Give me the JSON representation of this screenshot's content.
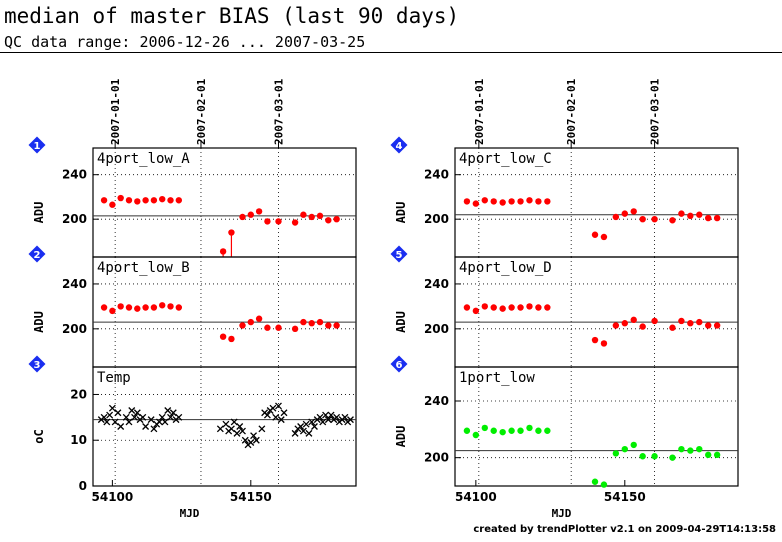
{
  "header": {
    "title": "median of master BIAS (last 90 days)",
    "subtitle": "QC data range: 2006-12-26 ... 2007-03-25"
  },
  "footer": {
    "text": "created by trendPlotter v2.1 on 2009-04-29T14:13:58"
  },
  "colors": {
    "red": "#ff0000",
    "green": "#00ee00",
    "black": "#000000",
    "badge": "#1a2ef0"
  },
  "chart_data": [
    {
      "type": "scatter",
      "panel": 1,
      "label": "4port_low_A",
      "ylabel": "ADU",
      "xlim": [
        54093,
        54188
      ],
      "ylim": [
        166,
        264
      ],
      "yticks": [
        200,
        240
      ],
      "hline": 203,
      "color": "red",
      "marker": "dot",
      "show_xlabels": false,
      "x": [
        54097,
        54100,
        54103,
        54106,
        54109,
        54112,
        54115,
        54118,
        54121,
        54124,
        54140,
        54143,
        54147,
        54150,
        54153,
        54156,
        54160,
        54166,
        54169,
        54172,
        54175,
        54178,
        54181
      ],
      "y": [
        217,
        213,
        219,
        217,
        216,
        217,
        217,
        218,
        217,
        217,
        171,
        188,
        202,
        204,
        207,
        198,
        198,
        197,
        204,
        202,
        203,
        199,
        200
      ],
      "errbars": [
        {
          "x": 54140,
          "from": 166,
          "to": 171
        },
        {
          "x": 54143,
          "from": 166,
          "to": 188
        }
      ]
    },
    {
      "type": "scatter",
      "panel": 2,
      "label": "4port_low_B",
      "ylabel": "ADU",
      "xlim": [
        54093,
        54188
      ],
      "ylim": [
        166,
        264
      ],
      "yticks": [
        200,
        240
      ],
      "hline": 206,
      "color": "red",
      "marker": "dot",
      "show_xlabels": false,
      "x": [
        54097,
        54100,
        54103,
        54106,
        54109,
        54112,
        54115,
        54118,
        54121,
        54124,
        54140,
        54143,
        54147,
        54150,
        54153,
        54156,
        54160,
        54166,
        54169,
        54172,
        54175,
        54178,
        54181
      ],
      "y": [
        219,
        216,
        220,
        219,
        218,
        219,
        219,
        221,
        220,
        219,
        193,
        191,
        203,
        206,
        209,
        201,
        201,
        200,
        206,
        205,
        206,
        203,
        203
      ]
    },
    {
      "type": "scatter",
      "panel": 3,
      "label": "Temp",
      "ylabel": "oC",
      "xlim": [
        54093,
        54188
      ],
      "ylim": [
        0,
        26
      ],
      "yticks": [
        0,
        10,
        20
      ],
      "hline": 14.5,
      "color": "black",
      "marker": "cross",
      "show_xlabels": true,
      "xlabel": "MJD",
      "xticks": [
        54100,
        54150
      ],
      "x": [
        54096,
        54097,
        54098,
        54099,
        54100,
        54101,
        54102,
        54103,
        54105,
        54106,
        54107,
        54108,
        54109,
        54110,
        54111,
        54112,
        54114,
        54115,
        54116,
        54117,
        54118,
        54119,
        54120,
        54121,
        54122,
        54123,
        54124,
        54139,
        54141,
        54142,
        54143,
        54144,
        54145,
        54146,
        54147,
        54148,
        54149,
        54150,
        54151,
        54152,
        54154,
        54155,
        54156,
        54157,
        54158,
        54159,
        54160,
        54161,
        54162,
        54166,
        54167,
        54168,
        54169,
        54170,
        54171,
        54172,
        54173,
        54174,
        54175,
        54176,
        54177,
        54178,
        54179,
        54180,
        54181,
        54182,
        54183,
        54184,
        54185,
        54186
      ],
      "y": [
        14.5,
        15,
        14,
        15.5,
        17,
        14,
        16,
        13,
        15,
        14,
        16.5,
        15,
        16,
        14.5,
        15,
        13,
        14.5,
        12.5,
        13.5,
        14,
        15,
        14,
        16.5,
        15,
        16,
        14.5,
        15,
        12.5,
        13.5,
        12,
        12.5,
        14,
        11.5,
        13,
        12,
        10,
        9,
        9.5,
        11,
        10,
        12.5,
        16,
        15.5,
        16.5,
        17,
        15,
        17.5,
        14.5,
        16,
        11.5,
        12.5,
        13,
        12,
        13.5,
        11.5,
        14,
        13,
        14.5,
        15,
        14,
        15.5,
        14.5,
        15.5,
        14.5,
        15,
        14,
        14.5,
        15,
        14,
        14.5
      ]
    },
    {
      "type": "scatter",
      "panel": 4,
      "label": "4port_low_C",
      "ylabel": "ADU",
      "xlim": [
        54093,
        54188
      ],
      "ylim": [
        166,
        264
      ],
      "yticks": [
        200,
        240
      ],
      "hline": 204,
      "color": "red",
      "marker": "dot",
      "show_xlabels": false,
      "x": [
        54097,
        54100,
        54103,
        54106,
        54109,
        54112,
        54115,
        54118,
        54121,
        54124,
        54140,
        54143,
        54147,
        54150,
        54153,
        54156,
        54160,
        54166,
        54169,
        54172,
        54175,
        54178,
        54181
      ],
      "y": [
        216,
        214,
        217,
        216,
        215,
        216,
        216,
        217,
        216,
        216,
        186,
        184,
        202,
        205,
        207,
        200,
        200,
        199,
        205,
        203,
        204,
        201,
        201
      ]
    },
    {
      "type": "scatter",
      "panel": 5,
      "label": "4port_low_D",
      "ylabel": "ADU",
      "xlim": [
        54093,
        54188
      ],
      "ylim": [
        166,
        264
      ],
      "yticks": [
        200,
        240
      ],
      "hline": 206,
      "color": "red",
      "marker": "dot",
      "show_xlabels": false,
      "x": [
        54097,
        54100,
        54103,
        54106,
        54109,
        54112,
        54115,
        54118,
        54121,
        54124,
        54140,
        54143,
        54147,
        54150,
        54153,
        54156,
        54160,
        54166,
        54169,
        54172,
        54175,
        54178,
        54181
      ],
      "y": [
        219,
        216,
        220,
        219,
        218,
        219,
        219,
        220,
        219,
        219,
        190,
        187,
        203,
        205,
        208,
        202,
        207,
        201,
        207,
        205,
        206,
        203,
        203
      ]
    },
    {
      "type": "scatter",
      "panel": 6,
      "label": "1port_low",
      "ylabel": "ADU",
      "xlim": [
        54093,
        54188
      ],
      "ylim": [
        180,
        264
      ],
      "yticks": [
        200,
        240
      ],
      "hline": 205,
      "color": "green",
      "marker": "dot",
      "show_xlabels": true,
      "xlabel": "MJD",
      "xticks": [
        54100,
        54150
      ],
      "x": [
        54097,
        54100,
        54103,
        54106,
        54109,
        54112,
        54115,
        54118,
        54121,
        54124,
        54140,
        54143,
        54147,
        54150,
        54153,
        54156,
        54160,
        54166,
        54169,
        54172,
        54175,
        54178,
        54181
      ],
      "y": [
        219,
        216,
        221,
        219,
        218,
        219,
        219,
        221,
        219,
        219,
        183,
        181,
        203,
        206,
        209,
        201,
        201,
        200,
        206,
        205,
        206,
        202,
        202
      ]
    }
  ],
  "date_axis": {
    "labels": [
      "2007-01-01",
      "2007-02-01",
      "2007-03-01"
    ],
    "mjd": [
      54101,
      54132,
      54160
    ]
  }
}
